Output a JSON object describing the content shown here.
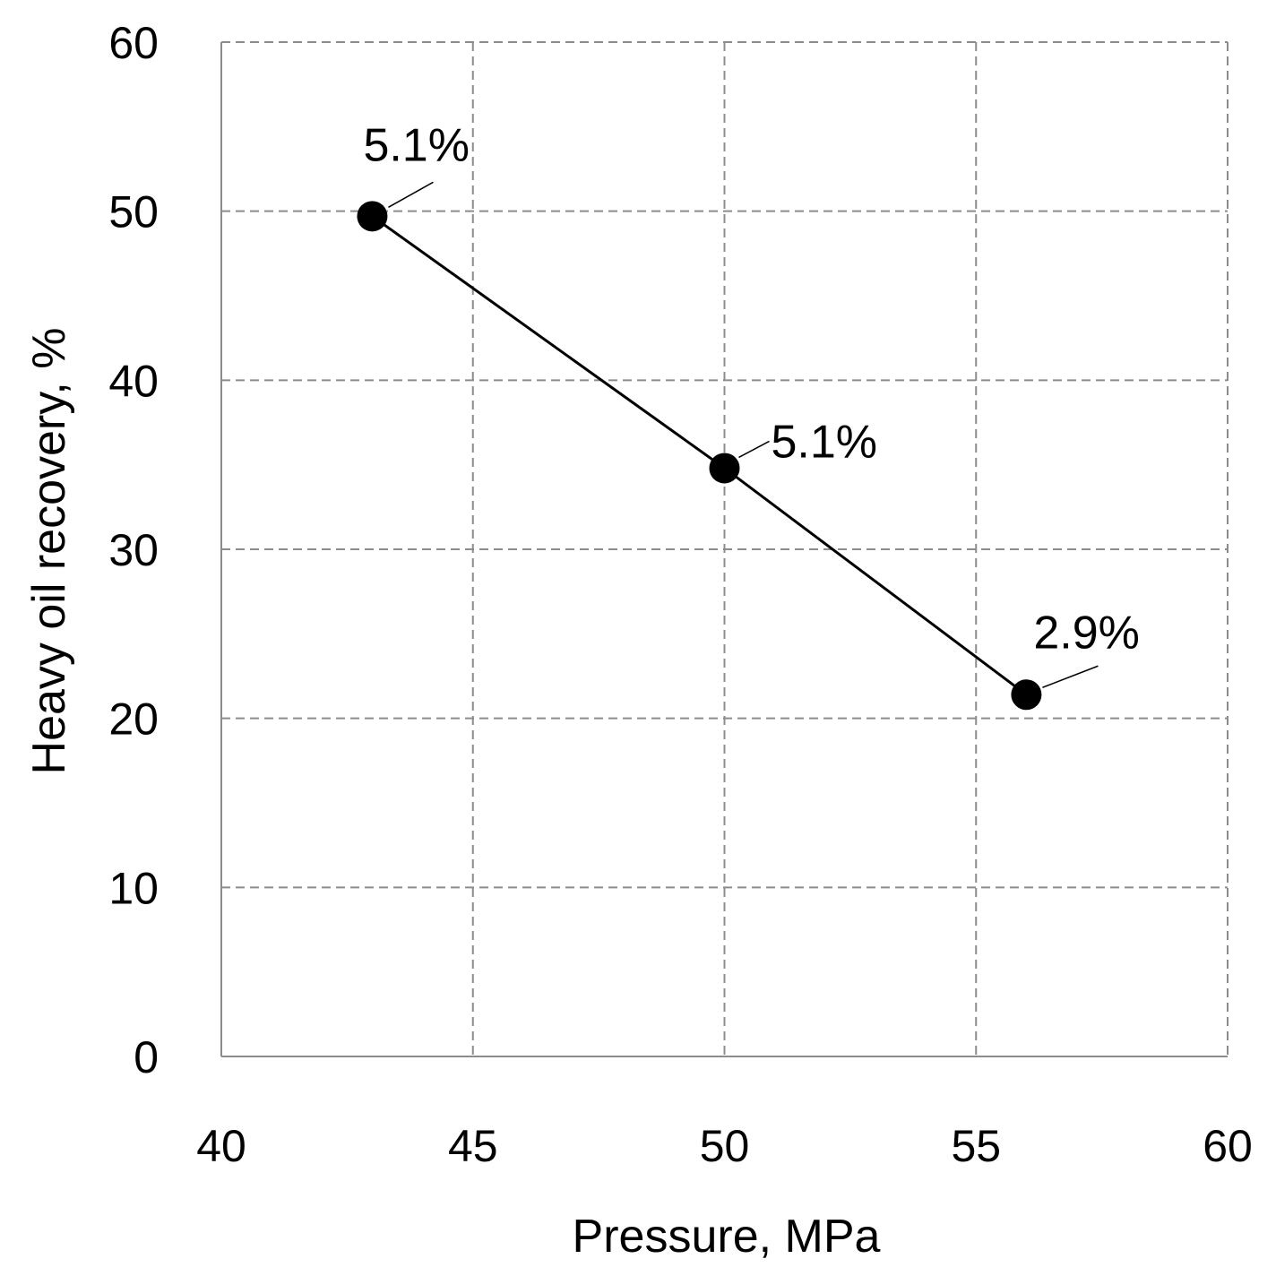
{
  "chart_data": {
    "type": "line",
    "title": "",
    "xlabel": "Pressure, MPa",
    "ylabel": "Heavy oil recovery, %",
    "xlim": [
      40,
      60
    ],
    "ylim": [
      0,
      60
    ],
    "x_ticks": [
      40,
      45,
      50,
      55,
      60
    ],
    "y_ticks": [
      0,
      10,
      20,
      30,
      40,
      50,
      60
    ],
    "x_tick_labels": [
      "40",
      "45",
      "50",
      "55",
      "60"
    ],
    "y_tick_labels": [
      "0",
      "10",
      "20",
      "30",
      "40",
      "50",
      "60"
    ],
    "grid": true,
    "series": [
      {
        "x": [
          43,
          50,
          56
        ],
        "y": [
          49.7,
          34.8,
          21.4
        ],
        "color": "#000000",
        "marker": "circle",
        "data_labels": [
          "5.1%",
          "5.1%",
          "2.9%"
        ]
      }
    ]
  }
}
